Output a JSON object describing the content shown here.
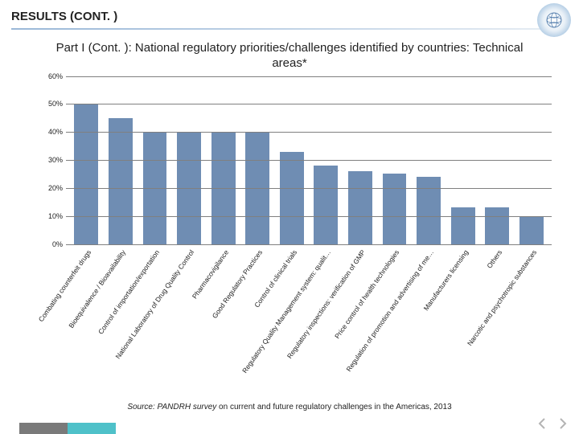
{
  "section_title": "RESULTS (CONT. )",
  "chart_title": "Part I (Cont. ): National regulatory priorities/challenges identified by countries: Technical areas*",
  "source_prefix": "Source: PANDRH survey",
  "source_rest": " on current and future regulatory challenges in the Americas, 2013",
  "chart": {
    "type": "bar",
    "ylim": [
      0,
      60
    ],
    "ytick_step": 10,
    "yticks": [
      "0%",
      "10%",
      "20%",
      "30%",
      "40%",
      "50%",
      "60%"
    ],
    "grid_color": "#808080",
    "background": "#ffffff",
    "bar_color": "#6f8db3",
    "bar_width_pct": 70,
    "label_fontsize": 9,
    "xlabel_rotation": -55,
    "items": [
      {
        "label": "Combating counterfeit drugs",
        "value": 50
      },
      {
        "label": "Bioequivalence / Bioavailability",
        "value": 45
      },
      {
        "label": "Control of importation/exportation",
        "value": 40
      },
      {
        "label": "National Laboratory of Drug Quality Control",
        "value": 40
      },
      {
        "label": "Pharmacovigilance",
        "value": 40
      },
      {
        "label": "Good Regulatory Practices",
        "value": 40
      },
      {
        "label": "Control of clinical trials",
        "value": 33
      },
      {
        "label": "Regulatory Quality Management system: qualit…",
        "value": 28
      },
      {
        "label": "Regulatory inspections: verification of GMP",
        "value": 26
      },
      {
        "label": "Price control of health technologies",
        "value": 25
      },
      {
        "label": "Regulation of promotion and advertising of me…",
        "value": 24
      },
      {
        "label": "Manufacturers licensing",
        "value": 13
      },
      {
        "label": "Others",
        "value": 13
      },
      {
        "label": "Narcotic and psychotropic substances",
        "value": 10
      }
    ]
  },
  "footer": {
    "bar1_color": "#7a7a7a",
    "bar2_color": "#4fc1c9",
    "arrow_color": "#b4b4b4"
  }
}
